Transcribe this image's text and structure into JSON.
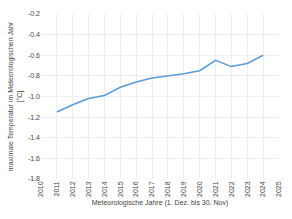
{
  "chart_data": {
    "type": "line",
    "xlabel": "Meteorologische Jahre (1. Dez. bis 30. Nov)",
    "ylabel": "maximale Temperatur im Meteorologischen Jahr\n[°C]",
    "x": [
      2011,
      2012,
      2013,
      2014,
      2015,
      2016,
      2017,
      2018,
      2019,
      2020,
      2021,
      2022,
      2023,
      2024
    ],
    "values": [
      -1.15,
      -1.08,
      -1.02,
      -0.99,
      -0.91,
      -0.86,
      -0.82,
      -0.8,
      -0.78,
      -0.75,
      -0.65,
      -0.71,
      -0.68,
      -0.6
    ],
    "color": "#5b9bd5",
    "xlim": [
      2010,
      2025
    ],
    "xticks": [
      2010,
      2011,
      2012,
      2013,
      2014,
      2015,
      2016,
      2017,
      2018,
      2019,
      2020,
      2021,
      2022,
      2023,
      2024,
      2025
    ],
    "ylim": [
      -1.8,
      -0.2
    ],
    "yticks": [
      -1.8,
      -1.6,
      -1.4,
      -1.2,
      {
        "value": -1.0,
        "label": "-1.0"
      },
      -0.8,
      -0.6,
      -0.4,
      -0.2
    ],
    "grid": true
  }
}
